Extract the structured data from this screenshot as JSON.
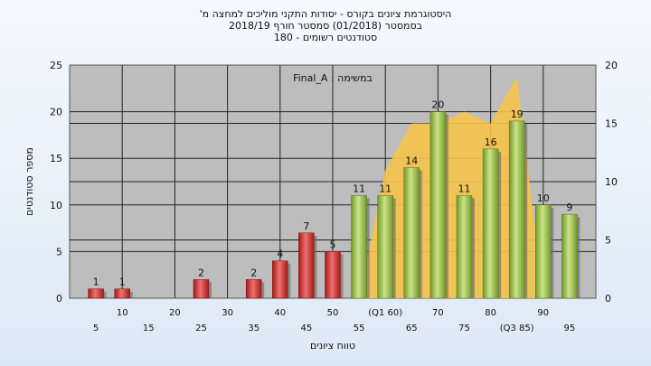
{
  "chart_data": {
    "type": "bar",
    "title_lines": [
      "היסטוגרמת ציונים בקורס - יסודות התקני מוליכים למחצה מ'",
      "בסמסטר  (01/2018)  סמסטר חורף  2018/19",
      "סטודנטים רשומים - 180"
    ],
    "annotation": "במשימה : Final_A",
    "xlabel": "טווח ציונים",
    "ylabel": "מספר סטודנטים",
    "ylim": [
      0,
      25
    ],
    "yticks": [
      0,
      5,
      10,
      15,
      20,
      25
    ],
    "y2lim": [
      0,
      20
    ],
    "y2ticks": [
      0,
      5,
      10,
      15,
      20
    ],
    "x_tick_labels": [
      "5",
      "10",
      "15",
      "20",
      "25",
      "30",
      "35",
      "40",
      "45",
      "50",
      "55",
      "(Q1 60)",
      "65",
      "70",
      "75",
      "80",
      "(Q3 85)",
      "90",
      "95"
    ],
    "grid": true,
    "series": [
      {
        "type": "bar",
        "x": [
          5,
          10,
          25,
          35,
          40,
          45,
          50,
          55,
          60,
          65,
          70,
          75,
          80,
          85,
          90,
          95
        ],
        "values": [
          1,
          1,
          2,
          2,
          4,
          7,
          5,
          11,
          11,
          14,
          20,
          11,
          16,
          19,
          10,
          9
        ],
        "colors": [
          "#d42e2e",
          "#d42e2e",
          "#d42e2e",
          "#d42e2e",
          "#d42e2e",
          "#d42e2e",
          "#d42e2e",
          "#8cbb3a",
          "#8cbb3a",
          "#8cbb3a",
          "#8cbb3a",
          "#8cbb3a",
          "#8cbb3a",
          "#8cbb3a",
          "#8cbb3a",
          "#8cbb3a"
        ]
      },
      {
        "type": "area",
        "axis": "right",
        "x": [
          55,
          60,
          65,
          70,
          75,
          80,
          85,
          90
        ],
        "values": [
          0,
          11,
          15,
          15,
          16,
          15,
          19,
          0
        ]
      }
    ],
    "colors": {
      "fail": "#d42e2e",
      "pass": "#8cbb3a",
      "area": "#f5c34a",
      "plot_bg": "#bdbdbd"
    }
  }
}
